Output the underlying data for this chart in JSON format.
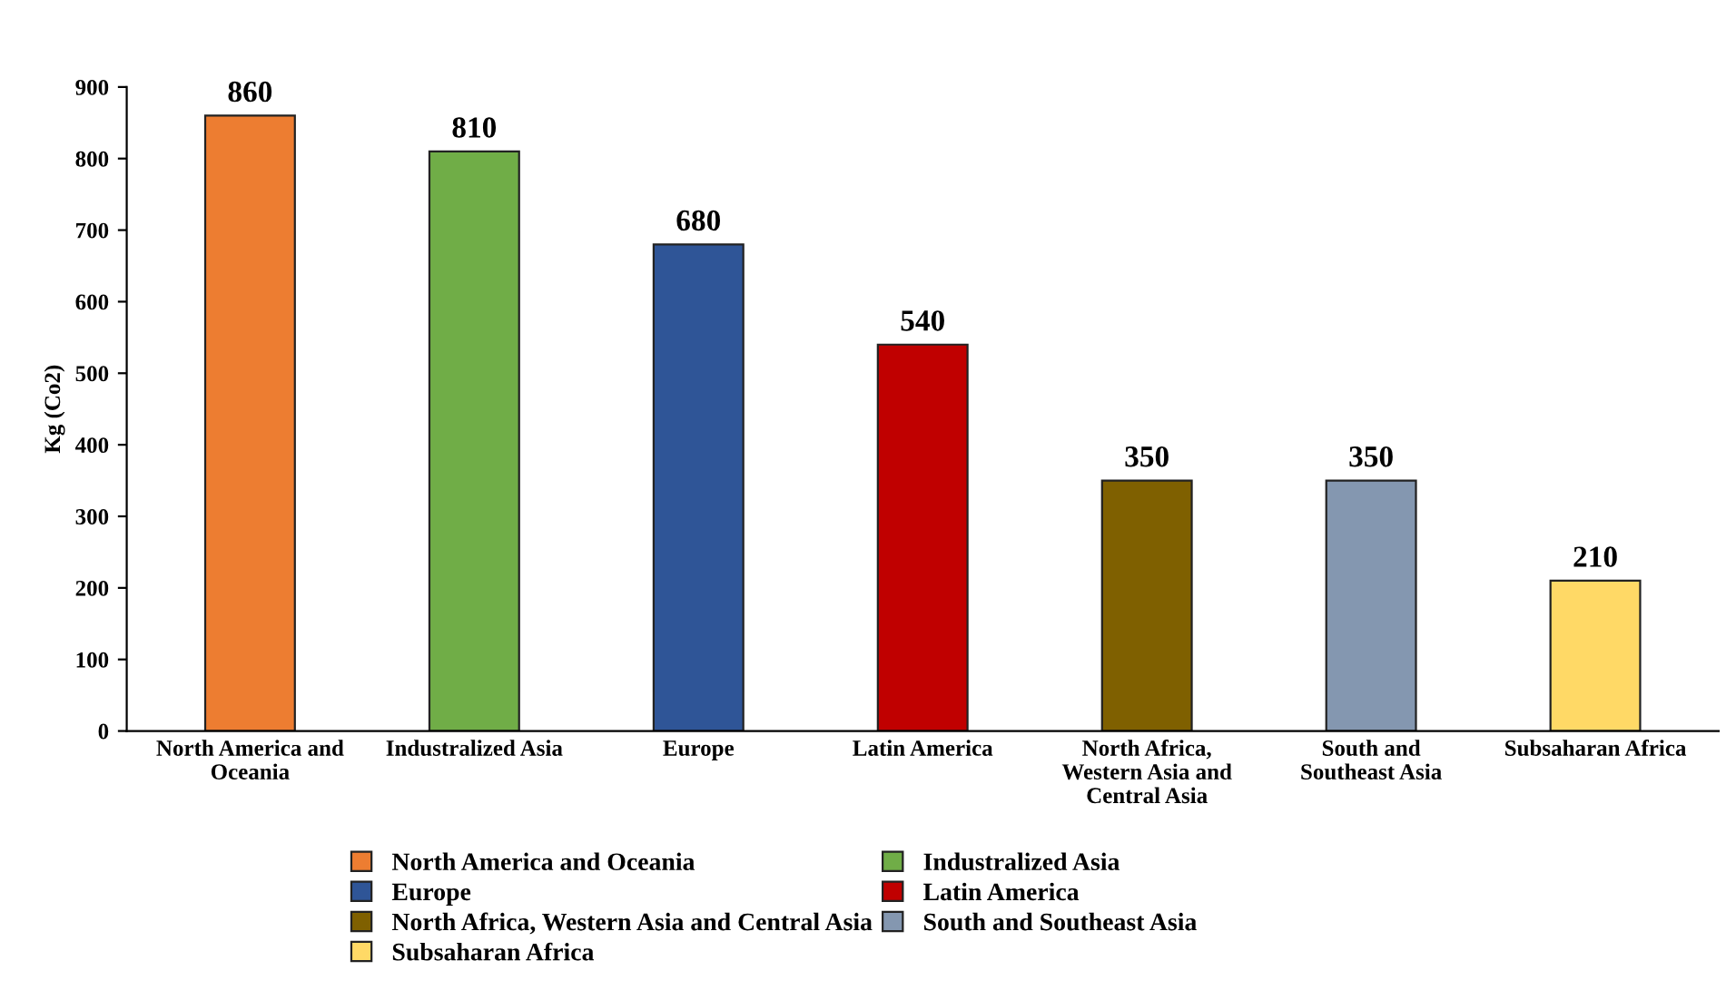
{
  "chart_data": {
    "type": "bar",
    "ylabel": "Kg (Co2)",
    "categories": [
      "North America and\nOceania",
      "Industralized Asia",
      "Europe",
      "Latin America",
      "North Africa,\nWestern Asia and\nCentral Asia",
      "South and\nSoutheast Asia",
      "Subsaharan Africa"
    ],
    "series": [
      {
        "name": "North America and Oceania",
        "color": "#ed7d31",
        "values": [
          860,
          null,
          null,
          null,
          null,
          null,
          null
        ]
      },
      {
        "name": "Industralized Asia",
        "color": "#70ad47",
        "values": [
          null,
          810,
          null,
          null,
          null,
          null,
          null
        ]
      },
      {
        "name": "Europe",
        "color": "#2f5597",
        "values": [
          null,
          null,
          680,
          null,
          null,
          null,
          null
        ]
      },
      {
        "name": "Latin America",
        "color": "#c00000",
        "values": [
          null,
          null,
          null,
          540,
          null,
          null,
          null
        ]
      },
      {
        "name": "North Africa, Western Asia and Central Asia",
        "color": "#7f6000",
        "values": [
          null,
          null,
          null,
          null,
          350,
          null,
          null
        ]
      },
      {
        "name": "South and Southeast Asia",
        "color": "#8497b0",
        "values": [
          null,
          null,
          null,
          null,
          null,
          350,
          null
        ]
      },
      {
        "name": "Subsaharan Africa",
        "color": "#ffd966",
        "values": [
          null,
          null,
          null,
          null,
          null,
          null,
          210
        ]
      }
    ],
    "ylim": [
      0,
      900
    ],
    "yticks": [
      0,
      100,
      200,
      300,
      400,
      500,
      600,
      700,
      800,
      900
    ],
    "data_labels": true,
    "grid": false,
    "legend": "bottom"
  }
}
